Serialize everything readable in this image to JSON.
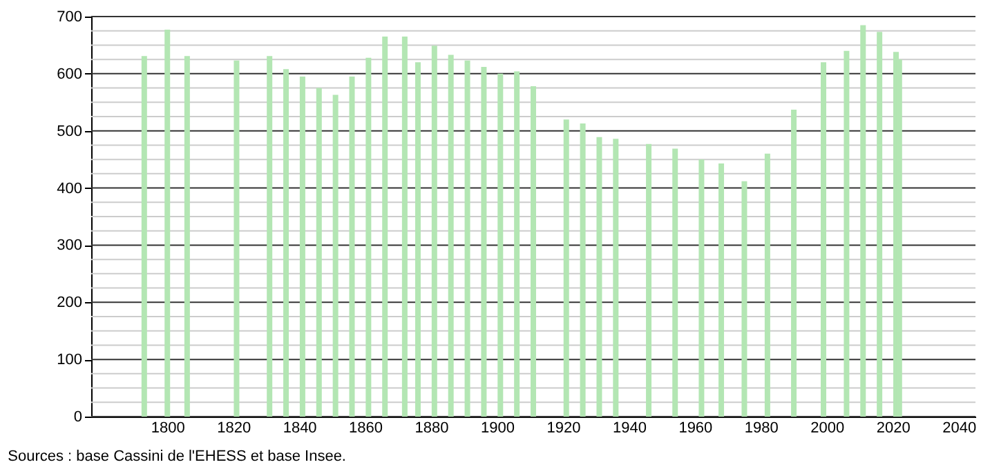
{
  "chart_data": {
    "type": "bar",
    "x": [
      1793,
      1800,
      1806,
      1821,
      1831,
      1836,
      1841,
      1846,
      1851,
      1856,
      1861,
      1866,
      1872,
      1876,
      1881,
      1886,
      1891,
      1896,
      1901,
      1906,
      1911,
      1921,
      1926,
      1931,
      1936,
      1946,
      1954,
      1962,
      1968,
      1975,
      1982,
      1990,
      1999,
      2006,
      2011,
      2016,
      2021,
      2022
    ],
    "values": [
      631,
      677,
      631,
      623,
      631,
      608,
      595,
      575,
      563,
      595,
      628,
      665,
      665,
      620,
      649,
      633,
      623,
      612,
      600,
      604,
      578,
      520,
      513,
      489,
      486,
      477,
      469,
      450,
      443,
      412,
      460,
      537,
      620,
      640,
      685,
      673,
      638,
      625
    ],
    "color": "#b3e6b3",
    "xlim": [
      1779,
      2043
    ],
    "xticks": [
      1800,
      1820,
      1840,
      1860,
      1880,
      1900,
      1920,
      1940,
      1960,
      1980,
      2000,
      2020,
      2040
    ],
    "ylim": [
      0,
      700
    ],
    "yticks": [
      0,
      100,
      200,
      300,
      400,
      500,
      600,
      700
    ],
    "grid": "y",
    "annotations": [
      "Sources : base Cassini de l'EHESS et base Insee."
    ]
  }
}
